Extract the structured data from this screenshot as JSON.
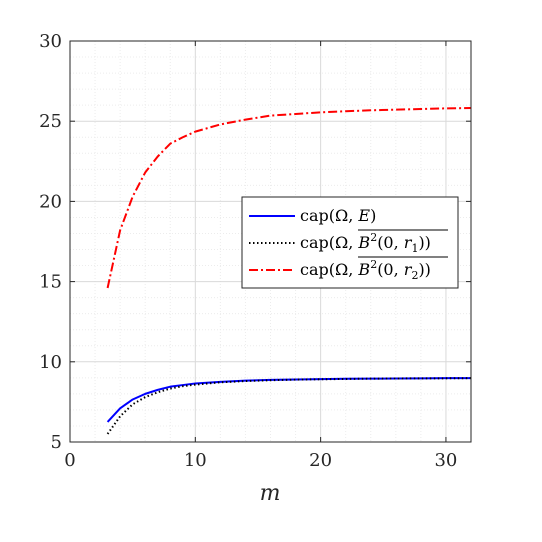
{
  "chart_data": {
    "type": "line",
    "title": "",
    "xlabel": "m",
    "ylabel": "",
    "xlim": [
      0,
      32
    ],
    "ylim": [
      5,
      30
    ],
    "xticks": [
      0,
      10,
      20,
      30
    ],
    "yticks": [
      5,
      10,
      15,
      20,
      25,
      30
    ],
    "grid": "major and minor",
    "legend_position": "right-middle",
    "series": [
      {
        "name": "cap(Ω, E)",
        "color": "#0000FF",
        "style": "solid",
        "x": [
          3,
          4,
          5,
          6,
          7,
          8,
          9,
          10,
          12,
          14,
          16,
          18,
          20,
          22,
          24,
          26,
          28,
          30,
          32
        ],
        "y": [
          6.25,
          7.1,
          7.65,
          8.0,
          8.25,
          8.45,
          8.55,
          8.65,
          8.75,
          8.83,
          8.87,
          8.9,
          8.92,
          8.94,
          8.95,
          8.96,
          8.97,
          8.98,
          8.98
        ]
      },
      {
        "name": "cap(Ω, B²(0, r₁))",
        "color": "#000000",
        "style": "dotted",
        "x": [
          3,
          4,
          5,
          6,
          7,
          8,
          9,
          10,
          12,
          14,
          16,
          18,
          20,
          22,
          24,
          26,
          28,
          30,
          32
        ],
        "y": [
          5.5,
          6.6,
          7.35,
          7.8,
          8.1,
          8.33,
          8.48,
          8.58,
          8.72,
          8.8,
          8.85,
          8.89,
          8.91,
          8.93,
          8.95,
          8.96,
          8.97,
          8.97,
          8.98
        ]
      },
      {
        "name": "cap(Ω, B²(0, r₂))",
        "color": "#FF0000",
        "style": "dashdot",
        "x": [
          3,
          4,
          5,
          6,
          7,
          8,
          9,
          10,
          12,
          14,
          16,
          18,
          20,
          22,
          24,
          26,
          28,
          30,
          32
        ],
        "y": [
          14.6,
          18.2,
          20.3,
          21.8,
          22.8,
          23.6,
          24.0,
          24.35,
          24.8,
          25.1,
          25.35,
          25.45,
          25.55,
          25.62,
          25.68,
          25.72,
          25.76,
          25.8,
          25.82
        ]
      }
    ]
  }
}
